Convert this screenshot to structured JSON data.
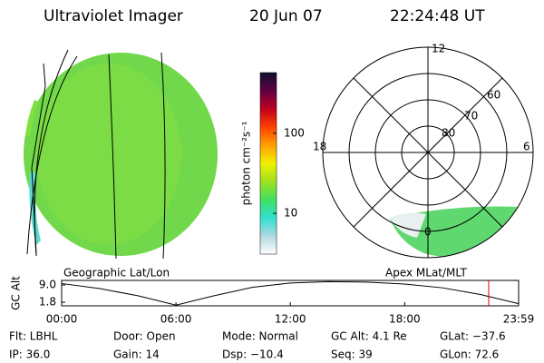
{
  "header": {
    "instrument": "Ultraviolet Imager",
    "date": "20 Jun 07",
    "time": "22:24:48 UT"
  },
  "colorbar": {
    "label": "photon cm⁻²s⁻¹",
    "log_scale": true,
    "lim": [
      3.1,
      570
    ],
    "ticks": [
      10,
      100
    ],
    "colors": [
      "#ffffff",
      "#b0d8e0",
      "#30e0d0",
      "#40e060",
      "#a0e020",
      "#f0f000",
      "#ffa000",
      "#ff4000",
      "#c00020",
      "#600040",
      "#101030"
    ]
  },
  "left_panel": {
    "caption": "Geographic Lat/Lon"
  },
  "right_panel": {
    "caption": "Apex MLat/MLT",
    "mlt_labels": [
      "12",
      "18",
      "6",
      "0"
    ],
    "mlat_labels": [
      "60",
      "70",
      "80"
    ]
  },
  "altitude_plot": {
    "type": "line",
    "ylabel": "GC Alt",
    "x": [
      0,
      2,
      4,
      6,
      8,
      10,
      12,
      14,
      16,
      18,
      20,
      22,
      23.98
    ],
    "values": [
      9.6,
      7.5,
      4.5,
      0.6,
      4.5,
      8.0,
      9.8,
      10.4,
      10.2,
      9.4,
      7.8,
      5.0,
      1.2
    ],
    "xlim": [
      0,
      23.98
    ],
    "ylim": [
      0.3,
      10.9
    ],
    "yticks": [
      {
        "value": 9.0,
        "label": "9.0"
      },
      1.8
    ],
    "xticks": [
      {
        "value": 0,
        "label": "00:00"
      },
      {
        "value": 6,
        "label": "06:00"
      },
      {
        "value": 12,
        "label": "12:00"
      },
      {
        "value": 18,
        "label": "18:00"
      },
      {
        "value": 23.98,
        "label": "23:59"
      }
    ],
    "current_time": 22.41,
    "marker_color": "#d00000"
  },
  "status": {
    "rows": [
      [
        "Flt: LBHL",
        "Door: Open",
        "Mode: Normal",
        "GC Alt: 4.1 Re",
        "GLat: −37.6"
      ],
      [
        "IP: 36.0",
        "Gain: 14",
        "Dsp: −10.4",
        "Seq: 39",
        "GLon: 72.6"
      ]
    ]
  }
}
